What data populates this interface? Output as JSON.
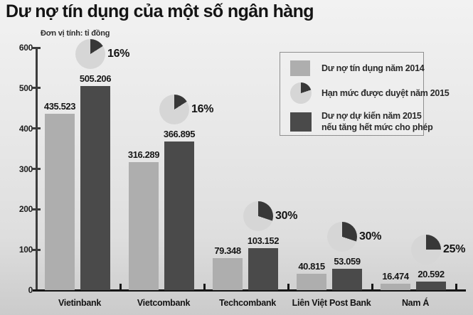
{
  "title": "Dư nợ tín dụng của một số ngân hàng",
  "unit_label": "Đơn vị tính: tỉ đồng",
  "legend": {
    "item_2014": "Dư nợ tín dụng năm 2014",
    "item_limit": "Hạn mức được duyệt năm 2015",
    "item_2015_line1": "Dư nợ dự kiến năm 2015",
    "item_2015_line2": "nếu tăng hết mức cho phép"
  },
  "colors": {
    "bar_2014": "#aeaeae",
    "bar_2015": "#4a4a4a",
    "pie_light": "#d6d6d6",
    "pie_dark": "#383838",
    "axis": "#3c3c3c",
    "baseline": "#161616"
  },
  "chart_data": {
    "type": "bar",
    "title": "Dư nợ tín dụng của một số ngân hàng",
    "unit": "tỉ đồng",
    "categories": [
      "Vietinbank",
      "Vietcombank",
      "Techcombank",
      "Liên Việt Post Bank",
      "Nam Á"
    ],
    "series": [
      {
        "name": "Dư nợ tín dụng năm 2014",
        "values": [
          435.523,
          316.289,
          79.348,
          40.815,
          16.474
        ],
        "labels": [
          "435.523",
          "316.289",
          "79.348",
          "40.815",
          "16.474"
        ]
      },
      {
        "name": "Dư nợ dự kiến năm 2015 nếu tăng hết mức cho phép",
        "values": [
          505.206,
          366.895,
          103.152,
          53.059,
          20.592
        ],
        "labels": [
          "505.206",
          "366.895",
          "103.152",
          "53.059",
          "20.592"
        ]
      }
    ],
    "growth_pct_2015": {
      "name": "Hạn mức được duyệt năm 2015",
      "values": [
        16,
        16,
        30,
        30,
        25
      ],
      "labels": [
        "16%",
        "16%",
        "30%",
        "30%",
        "25%"
      ]
    },
    "ylim": [
      0,
      600
    ],
    "yticks": [
      0,
      100,
      200,
      300,
      400,
      500,
      600
    ],
    "legend_pie_pct": 20,
    "legend_position": "top-right",
    "grid": false
  }
}
